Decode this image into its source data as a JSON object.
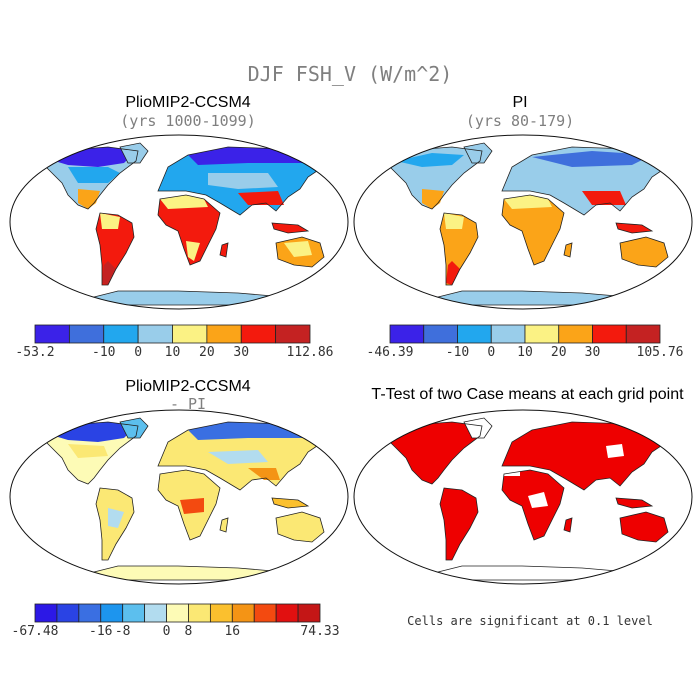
{
  "figure": {
    "title": "DJF FSH_V (W/m^2)",
    "footnote": "Cells are significant at 0.1 level"
  },
  "colors": {
    "land_outline": "#222222",
    "significant": "#ee0000"
  },
  "chart_data": [
    {
      "type": "heatmap",
      "title": "PlioMIP2-CCSM4",
      "subtitle": "(yrs 1000-1099)",
      "colorbar": {
        "colors": [
          "#3b22e8",
          "#3f6fdc",
          "#22a7ee",
          "#99cdea",
          "#fbf284",
          "#fba418",
          "#f31a0d",
          "#c42222"
        ],
        "tick_labels": [
          "-53.2",
          "-10",
          "0",
          "10",
          "20",
          "30",
          "112.86"
        ]
      }
    },
    {
      "type": "heatmap",
      "title": "PI",
      "subtitle": "(yrs 80-179)",
      "colorbar": {
        "colors": [
          "#3b22e8",
          "#3f6fdc",
          "#22a7ee",
          "#99cdea",
          "#fbf284",
          "#fba418",
          "#f31a0d",
          "#c42222"
        ],
        "tick_labels": [
          "-46.39",
          "-10",
          "0",
          "10",
          "20",
          "30",
          "105.76"
        ]
      }
    },
    {
      "type": "heatmap",
      "title": "PlioMIP2-CCSM4",
      "subtitle": "- PI",
      "colorbar": {
        "colors": [
          "#2c18e6",
          "#2a43e4",
          "#3a6fe2",
          "#1d95ee",
          "#5cbfee",
          "#b2dcef",
          "#fdfbb6",
          "#fbe874",
          "#fbc02e",
          "#f49415",
          "#f34a10",
          "#e11010",
          "#c41616"
        ],
        "tick_labels": [
          "-67.48",
          "-16",
          "-8",
          "0",
          "8",
          "16",
          "74.33"
        ]
      }
    },
    {
      "type": "heatmap",
      "title": "T-Test of two Case means at each grid point",
      "subtitle": ""
    }
  ]
}
